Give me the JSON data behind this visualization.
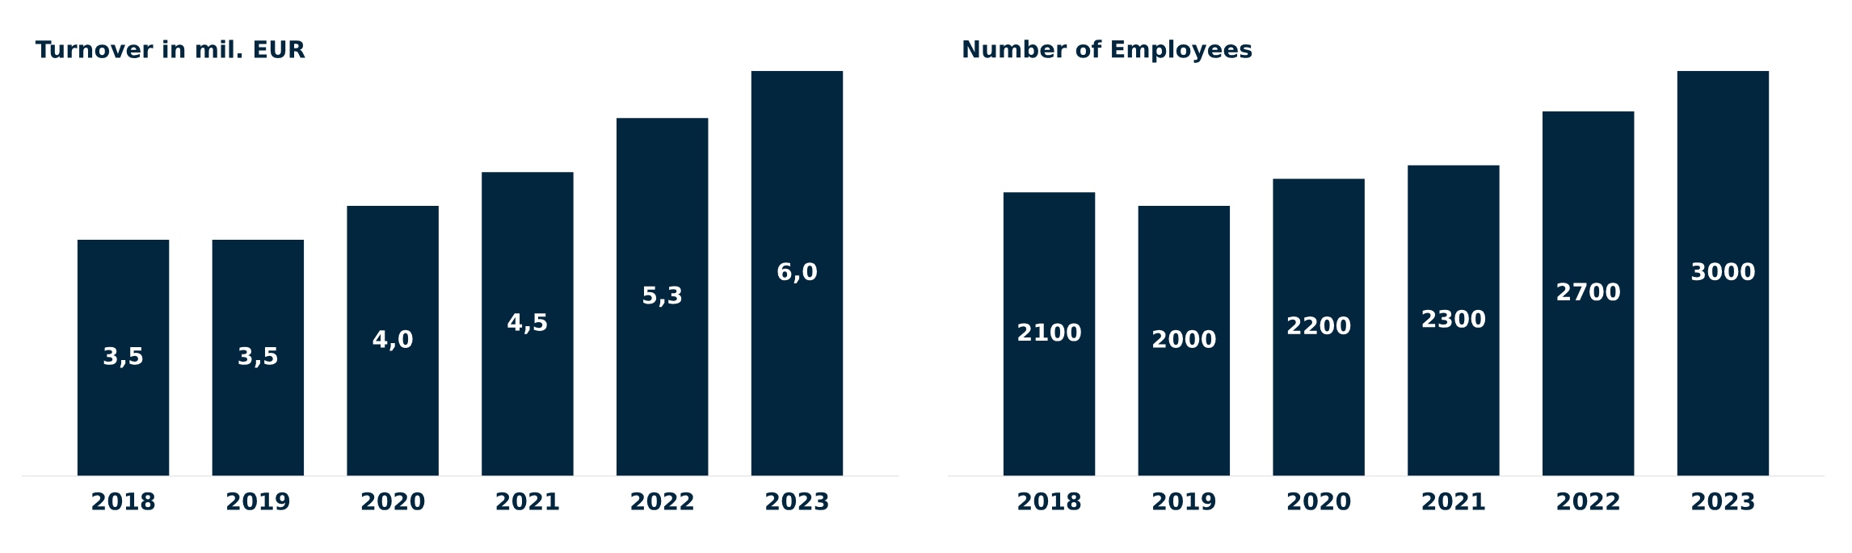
{
  "chart_data": [
    {
      "type": "bar",
      "title": "Turnover in mil. EUR",
      "categories": [
        "2018",
        "2019",
        "2020",
        "2021",
        "2022",
        "2023"
      ],
      "values": [
        3.5,
        3.5,
        4.0,
        4.5,
        5.3,
        6.0
      ],
      "value_labels": [
        "3,5",
        "3,5",
        "4,0",
        "4,5",
        "5,3",
        "6,0"
      ],
      "color": "#03263f",
      "tick_labels": "x",
      "grid": false,
      "legend": false
    },
    {
      "type": "bar",
      "title": "Number of Employees",
      "categories": [
        "2018",
        "2019",
        "2020",
        "2021",
        "2022",
        "2023"
      ],
      "values": [
        2100,
        2000,
        2200,
        2300,
        2700,
        3000
      ],
      "color": "#03263f",
      "data_labels": true,
      "tick_labels": "x",
      "grid": false,
      "legend": false
    }
  ]
}
